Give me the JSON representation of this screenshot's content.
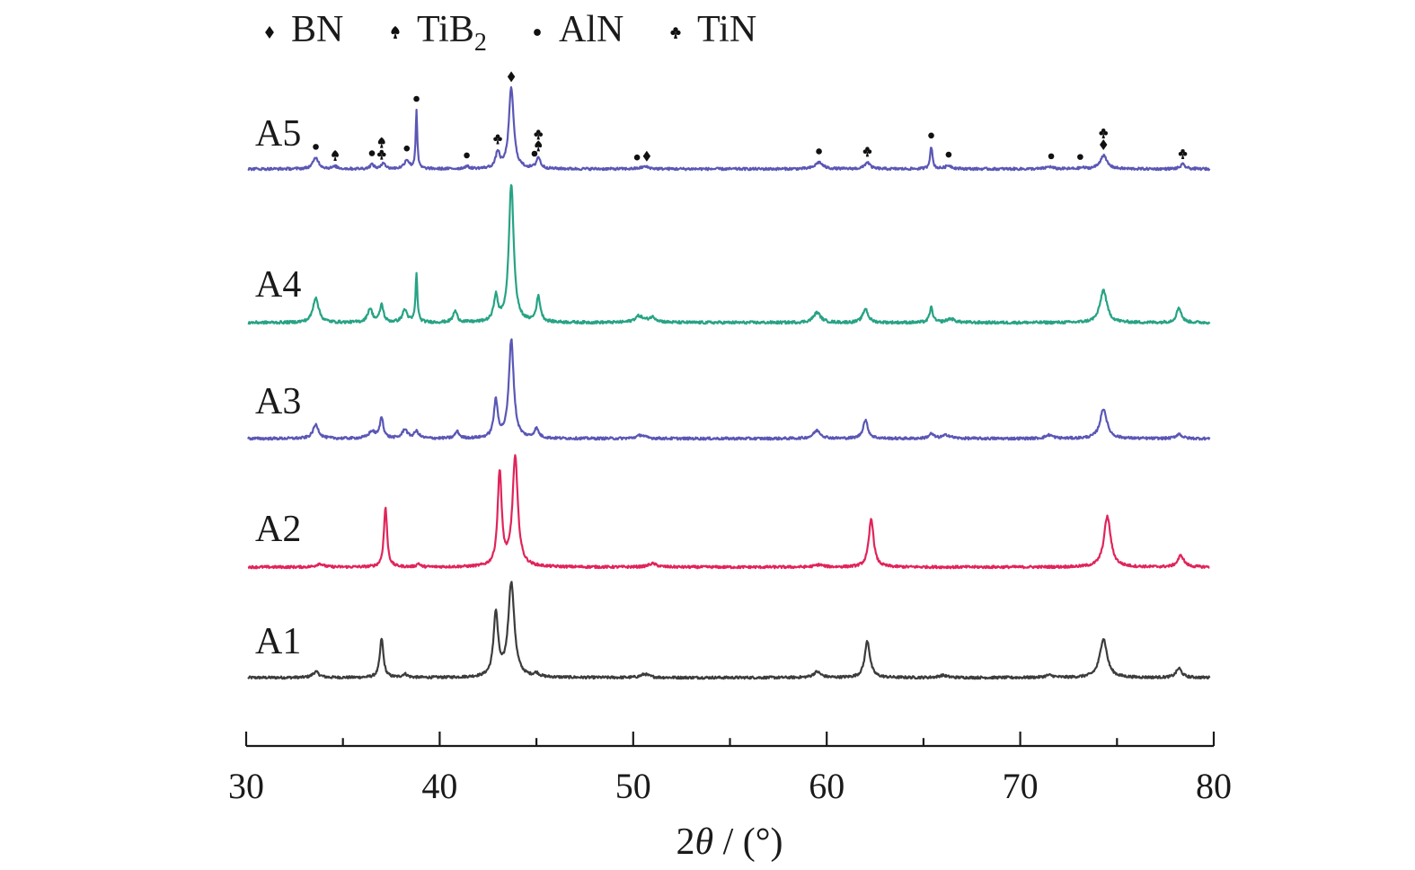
{
  "chart_data": {
    "type": "line",
    "title": "",
    "xlabel_parts": [
      "2",
      "θ",
      " / (°)"
    ],
    "ylabel": "",
    "xlim": [
      30,
      80
    ],
    "xticks": [
      30,
      40,
      50,
      60,
      70,
      80
    ],
    "grid": false,
    "legend": {
      "placement": "top-center",
      "items": [
        {
          "label": "BN",
          "sub": "",
          "marker": "diamond"
        },
        {
          "label": "TiB",
          "sub": "2",
          "marker": "spade"
        },
        {
          "label": "AlN",
          "sub": "",
          "marker": "dot"
        },
        {
          "label": "TiN",
          "sub": "",
          "marker": "club"
        }
      ]
    },
    "series": [
      {
        "name": "A1",
        "color": "#3c3c3c",
        "peaks": [
          [
            33.6,
            0.05,
            0.4
          ],
          [
            37.0,
            0.34,
            0.22
          ],
          [
            38.2,
            0.03,
            0.3
          ],
          [
            42.9,
            0.55,
            0.28
          ],
          [
            43.7,
            0.82,
            0.38
          ],
          [
            45.0,
            0.03,
            0.3
          ],
          [
            50.6,
            0.03,
            0.5
          ],
          [
            59.5,
            0.05,
            0.45
          ],
          [
            62.1,
            0.32,
            0.32
          ],
          [
            66.0,
            0.02,
            0.5
          ],
          [
            71.5,
            0.02,
            0.5
          ],
          [
            74.3,
            0.34,
            0.45
          ],
          [
            78.2,
            0.08,
            0.35
          ]
        ]
      },
      {
        "name": "A2",
        "color": "#e0245a",
        "peaks": [
          [
            33.8,
            0.03,
            0.4
          ],
          [
            37.2,
            0.52,
            0.2
          ],
          [
            38.9,
            0.03,
            0.2
          ],
          [
            43.1,
            0.82,
            0.25
          ],
          [
            43.9,
            0.95,
            0.33
          ],
          [
            51.0,
            0.03,
            0.5
          ],
          [
            59.6,
            0.02,
            0.5
          ],
          [
            62.3,
            0.42,
            0.3
          ],
          [
            74.5,
            0.44,
            0.42
          ],
          [
            78.3,
            0.1,
            0.38
          ]
        ]
      },
      {
        "name": "A3",
        "color": "#5a57b5",
        "peaks": [
          [
            33.6,
            0.12,
            0.35
          ],
          [
            36.5,
            0.06,
            0.4
          ],
          [
            37.0,
            0.18,
            0.22
          ],
          [
            38.2,
            0.08,
            0.3
          ],
          [
            38.8,
            0.06,
            0.3
          ],
          [
            40.9,
            0.06,
            0.25
          ],
          [
            42.9,
            0.32,
            0.25
          ],
          [
            43.7,
            0.86,
            0.3
          ],
          [
            45.0,
            0.08,
            0.28
          ],
          [
            50.4,
            0.03,
            0.5
          ],
          [
            59.5,
            0.07,
            0.45
          ],
          [
            62.0,
            0.16,
            0.3
          ],
          [
            65.4,
            0.04,
            0.3
          ],
          [
            66.2,
            0.03,
            0.5
          ],
          [
            71.5,
            0.03,
            0.45
          ],
          [
            74.3,
            0.26,
            0.42
          ],
          [
            78.2,
            0.04,
            0.35
          ]
        ]
      },
      {
        "name": "A4",
        "color": "#27a384",
        "peaks": [
          [
            33.6,
            0.2,
            0.35
          ],
          [
            36.4,
            0.11,
            0.3
          ],
          [
            37.0,
            0.14,
            0.22
          ],
          [
            38.2,
            0.1,
            0.3
          ],
          [
            38.8,
            0.38,
            0.12
          ],
          [
            40.8,
            0.09,
            0.25
          ],
          [
            42.9,
            0.2,
            0.25
          ],
          [
            43.7,
            1.1,
            0.3
          ],
          [
            45.1,
            0.2,
            0.25
          ],
          [
            50.3,
            0.05,
            0.5
          ],
          [
            51.0,
            0.04,
            0.5
          ],
          [
            59.5,
            0.08,
            0.45
          ],
          [
            62.0,
            0.11,
            0.32
          ],
          [
            65.4,
            0.12,
            0.2
          ],
          [
            66.4,
            0.03,
            0.5
          ],
          [
            74.3,
            0.26,
            0.42
          ],
          [
            78.2,
            0.12,
            0.3
          ]
        ]
      },
      {
        "name": "A5",
        "color": "#5a57b5",
        "peaks": [
          [
            33.6,
            0.1,
            0.35
          ],
          [
            34.6,
            0.02,
            0.3
          ],
          [
            36.5,
            0.04,
            0.25
          ],
          [
            37.1,
            0.06,
            0.2
          ],
          [
            38.3,
            0.08,
            0.3
          ],
          [
            38.8,
            0.52,
            0.1
          ],
          [
            41.4,
            0.02,
            0.3
          ],
          [
            43.0,
            0.14,
            0.25
          ],
          [
            43.7,
            0.72,
            0.3
          ],
          [
            45.1,
            0.1,
            0.25
          ],
          [
            50.6,
            0.02,
            0.5
          ],
          [
            59.6,
            0.06,
            0.45
          ],
          [
            62.1,
            0.06,
            0.32
          ],
          [
            65.4,
            0.2,
            0.15
          ],
          [
            66.3,
            0.03,
            0.4
          ],
          [
            71.5,
            0.02,
            0.4
          ],
          [
            73.2,
            0.01,
            0.3
          ],
          [
            74.3,
            0.12,
            0.42
          ],
          [
            78.4,
            0.04,
            0.3
          ]
        ]
      }
    ],
    "annotations": {
      "series": "A5",
      "markers": [
        {
          "x": 33.6,
          "symbol": "dot"
        },
        {
          "x": 34.6,
          "symbol": "spade"
        },
        {
          "x": 36.5,
          "symbol": "dot"
        },
        {
          "x": 37.0,
          "symbol": "club"
        },
        {
          "x": 37.0,
          "symbol": "spade"
        },
        {
          "x": 38.3,
          "symbol": "dot"
        },
        {
          "x": 38.8,
          "symbol": "dot"
        },
        {
          "x": 41.4,
          "symbol": "dot"
        },
        {
          "x": 43.0,
          "symbol": "club"
        },
        {
          "x": 43.7,
          "symbol": "diamond"
        },
        {
          "x": 44.9,
          "symbol": "dot"
        },
        {
          "x": 45.1,
          "symbol": "spade"
        },
        {
          "x": 45.1,
          "symbol": "club"
        },
        {
          "x": 50.2,
          "symbol": "dot"
        },
        {
          "x": 50.7,
          "symbol": "diamond"
        },
        {
          "x": 59.6,
          "symbol": "dot"
        },
        {
          "x": 62.1,
          "symbol": "club"
        },
        {
          "x": 65.4,
          "symbol": "dot"
        },
        {
          "x": 66.3,
          "symbol": "dot"
        },
        {
          "x": 71.6,
          "symbol": "dot"
        },
        {
          "x": 73.1,
          "symbol": "dot"
        },
        {
          "x": 74.3,
          "symbol": "diamond"
        },
        {
          "x": 74.3,
          "symbol": "club"
        },
        {
          "x": 78.4,
          "symbol": "club"
        }
      ]
    }
  }
}
